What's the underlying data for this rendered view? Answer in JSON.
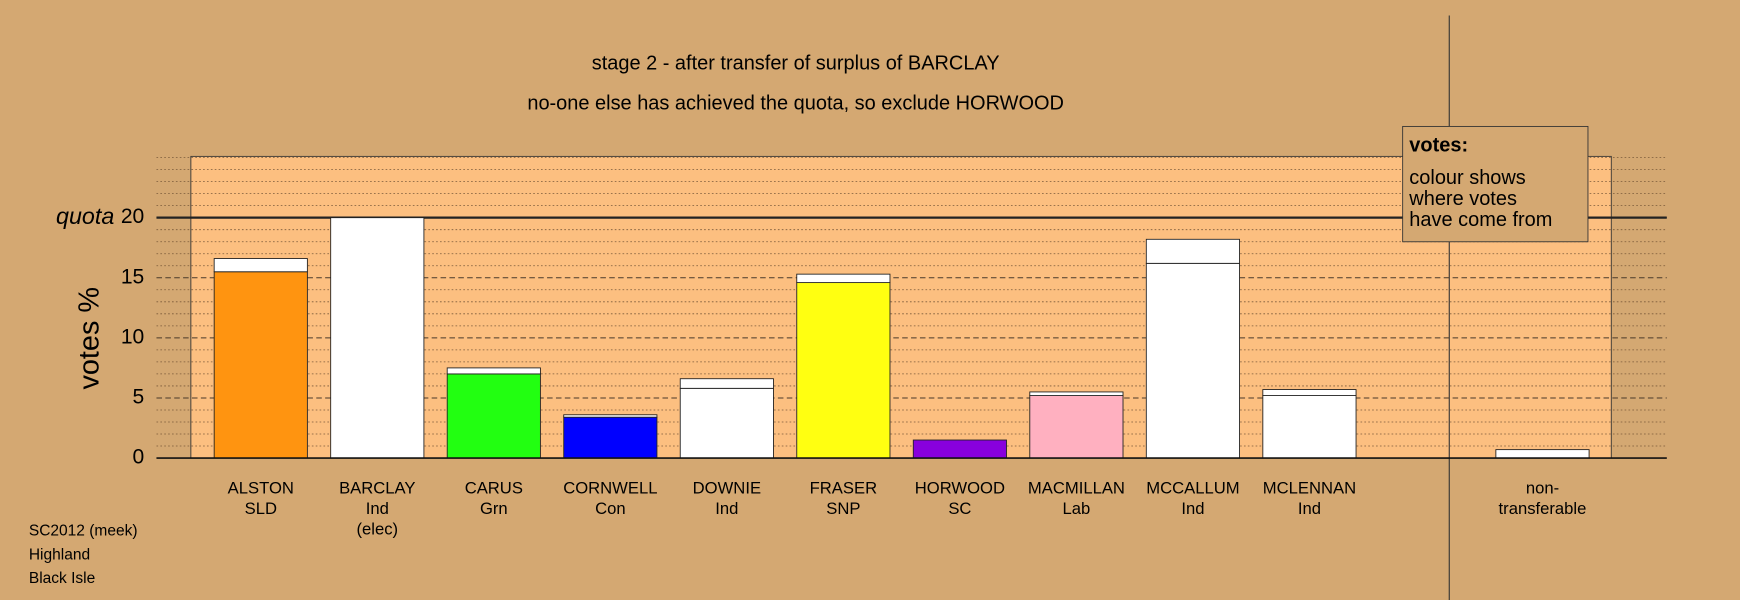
{
  "chart_data": {
    "type": "bar",
    "title": "stage 2 - after transfer of surplus of BARCLAY",
    "subtitle": "no-one else has achieved the quota, so exclude HORWOOD",
    "y_label": "votes %",
    "quota_label": "quota",
    "quota": 20,
    "categories": [
      [
        "ALSTON",
        "SLD"
      ],
      [
        "BARCLAY",
        "Ind",
        "(elec)"
      ],
      [
        "CARUS",
        "Grn"
      ],
      [
        "CORNWELL",
        "Con"
      ],
      [
        "DOWNIE",
        "Ind"
      ],
      [
        "FRASER",
        "SNP"
      ],
      [
        "HORWOOD",
        "SC"
      ],
      [
        "MACMILLAN",
        "Lab"
      ],
      [
        "MCCALLUM",
        "Ind"
      ],
      [
        "MCLENNAN",
        "Ind"
      ],
      [
        "non-",
        "transferable"
      ]
    ],
    "series": [
      {
        "colors": [
          "#ff9410",
          "#ffffff",
          "#22ff11",
          "#0000ff",
          "#ffffff",
          "#ffff11",
          "#8800dd",
          "#ffb0c0",
          "#ffffff",
          "#ffffff",
          "#ffffff"
        ],
        "values": [
          15.5,
          20.0,
          7.0,
          3.4,
          5.8,
          14.6,
          1.5,
          5.2,
          16.2,
          5.2,
          null
        ]
      },
      {
        "color": "#ffffff",
        "values": [
          1.1,
          null,
          0.5,
          0.2,
          0.8,
          0.7,
          null,
          0.3,
          2.0,
          0.5,
          0.7
        ]
      }
    ],
    "ylim": [
      0,
      25.1
    ],
    "yticks": [
      0,
      5,
      10,
      15,
      20
    ],
    "minor_yticks": [
      1,
      2,
      3,
      4,
      6,
      7,
      8,
      9,
      11,
      12,
      13,
      14,
      16,
      17,
      18,
      19,
      21,
      22,
      23,
      24,
      25
    ],
    "grid": true,
    "legend": {
      "title": "votes:",
      "lines": [
        "colour shows",
        "where votes",
        "have come from"
      ]
    },
    "notes": [
      "SC2012 (meek)",
      "Highland",
      "Black Isle"
    ]
  }
}
